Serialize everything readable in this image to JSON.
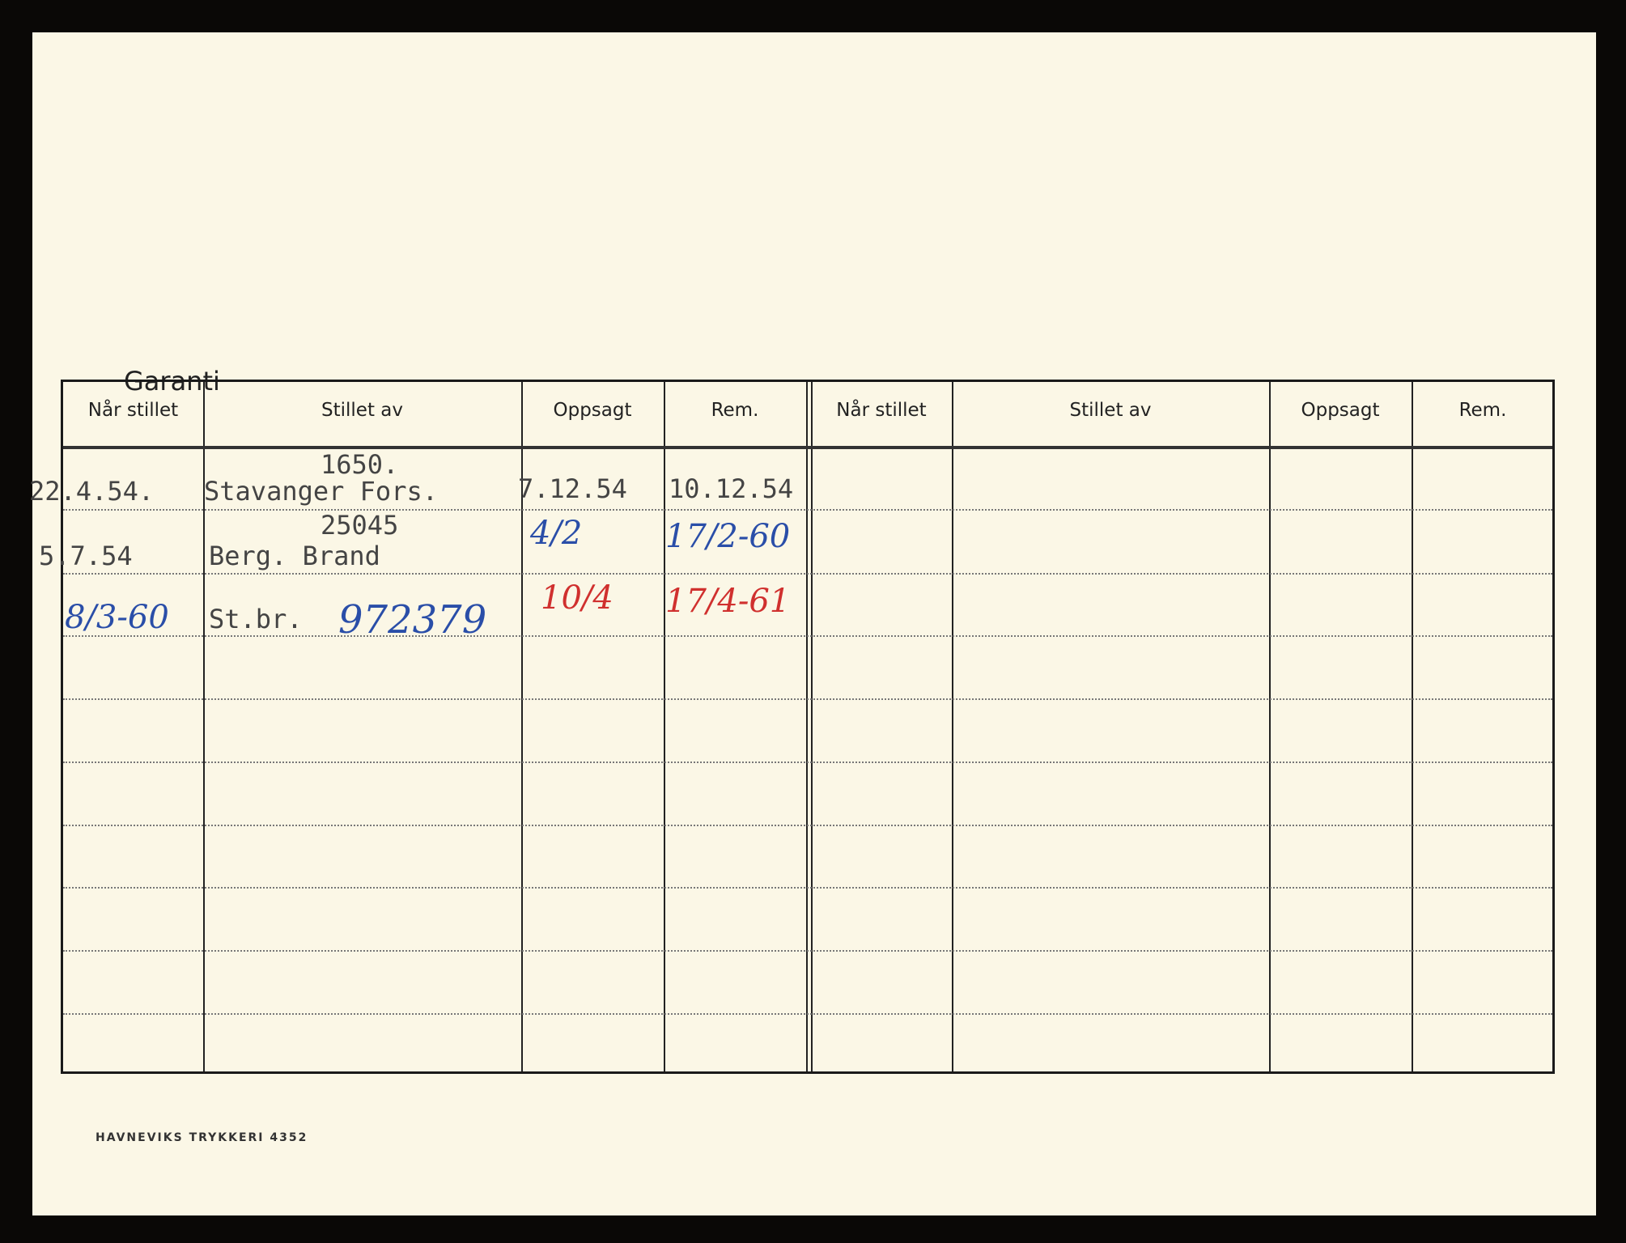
{
  "title": "Garanti",
  "headers": [
    "Når stillet",
    "Stillet av",
    "Oppsagt",
    "Rem.",
    "Når stillet",
    "Stillet av",
    "Oppsagt",
    "Rem."
  ],
  "entries": [
    {
      "nar_stillet": "22.4.54.",
      "stillet_av_top": "1650.",
      "stillet_av": "Stavanger Fors.",
      "oppsagt": "7.12.54",
      "rem": "10.12.54"
    },
    {
      "nar_stillet": "5.7.54",
      "stillet_av_top": "25045",
      "stillet_av": "Berg. Brand",
      "oppsagt": "4/2",
      "rem": "17/2-60"
    },
    {
      "nar_stillet": "8/3-60",
      "stillet_av": "St.br.",
      "stillet_av_number": "972379",
      "oppsagt": "10/4",
      "rem": "17/4-61"
    }
  ],
  "footer": "HAVNEVIKS TRYKKERI 4352",
  "colors": {
    "paper": "#fbf7e6",
    "blue_ink": "#2a4ea8",
    "red_ink": "#d0302e"
  }
}
